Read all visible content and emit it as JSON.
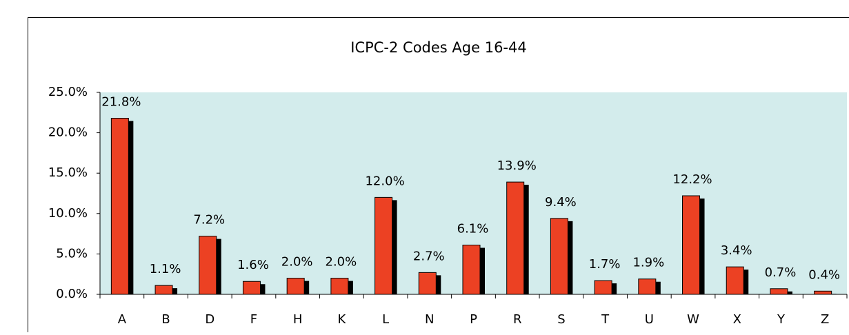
{
  "chart_data": {
    "type": "bar",
    "title": "ICPC-2 Codes Age 16-44",
    "categories": [
      "A",
      "B",
      "D",
      "F",
      "H",
      "K",
      "L",
      "N",
      "P",
      "R",
      "S",
      "T",
      "U",
      "W",
      "X",
      "Y",
      "Z"
    ],
    "values": [
      21.8,
      1.1,
      7.2,
      1.6,
      2.0,
      2.0,
      12.0,
      2.7,
      6.1,
      13.9,
      9.4,
      1.7,
      1.9,
      12.2,
      3.4,
      0.7,
      0.4
    ],
    "value_labels": [
      "21.8%",
      "1.1%",
      "7.2%",
      "1.6%",
      "2.0%",
      "2.0%",
      "12.0%",
      "2.7%",
      "6.1%",
      "13.9%",
      "9.4%",
      "1.7%",
      "1.9%",
      "12.2%",
      "3.4%",
      "0.7%",
      "0.4%"
    ],
    "color": "#ec4123",
    "ylim": [
      0,
      25
    ],
    "yticks": [
      {
        "value": 0,
        "label": "0.0%"
      },
      {
        "value": 5,
        "label": "5.0%"
      },
      {
        "value": 10,
        "label": "10.0%"
      },
      {
        "value": 15,
        "label": "15.0%"
      },
      {
        "value": 20,
        "label": "20.0%"
      },
      {
        "value": 25,
        "label": "25.0%"
      }
    ]
  }
}
